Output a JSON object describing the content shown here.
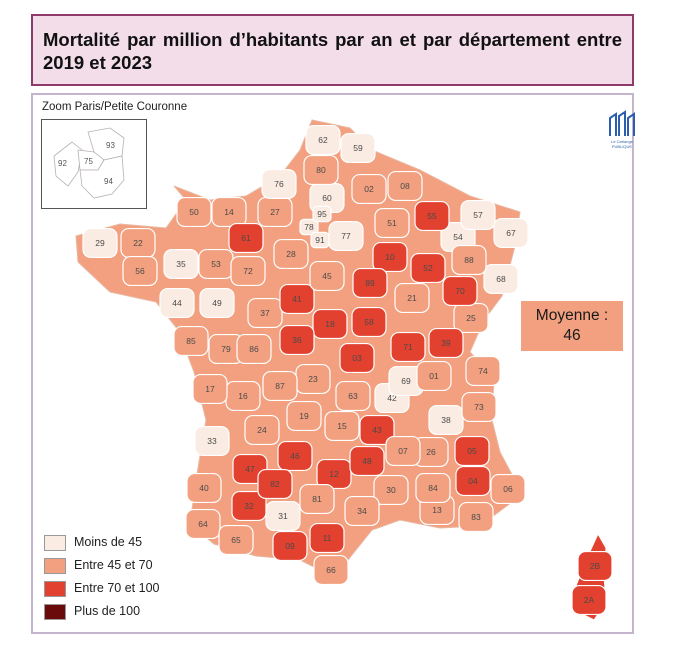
{
  "title": "Mortalité par million d’habitants par an et par département entre 2019 et 2023",
  "inset": {
    "title": "Zoom Paris/Petite Couronne",
    "labels": [
      "93",
      "92",
      "75",
      "94"
    ]
  },
  "average": {
    "line1": "Moyenne :",
    "line2": "46"
  },
  "legend": [
    {
      "label": "Moins de 45",
      "color": "#fbece3"
    },
    {
      "label": "Entre 45 et 70",
      "color": "#f2a07f"
    },
    {
      "label": "Entre 70 et 100",
      "color": "#e2412f"
    },
    {
      "label": "Plus de 100",
      "color": "#6b0a0a"
    }
  ],
  "colors": {
    "low": "#fbece3",
    "mid": "#f2a07f",
    "high": "#e2412f",
    "vhigh": "#6b0a0a",
    "border": "#ffffff",
    "title_border": "#8e3a6a",
    "title_bg": "#f3dde9"
  },
  "logo_text": [
    "Le Carlange",
    "PUBLIQUE"
  ],
  "departments": {
    "62": "low",
    "59": "low",
    "80": "mid",
    "76": "low",
    "02": "mid",
    "08": "mid",
    "60": "low",
    "50": "mid",
    "14": "mid",
    "27": "mid",
    "95": "low",
    "78": "low",
    "91": "low",
    "77": "low",
    "51": "mid",
    "55": "high",
    "57": "low",
    "54": "low",
    "67": "low",
    "29": "low",
    "22": "mid",
    "61": "high",
    "28": "mid",
    "10": "high",
    "52": "high",
    "88": "mid",
    "68": "low",
    "56": "mid",
    "35": "low",
    "53": "mid",
    "72": "mid",
    "45": "mid",
    "89": "high",
    "70": "high",
    "21": "mid",
    "44": "low",
    "49": "low",
    "37": "mid",
    "41": "high",
    "25": "mid",
    "85": "mid",
    "79": "mid",
    "86": "mid",
    "36": "high",
    "18": "high",
    "58": "high",
    "71": "high",
    "39": "high",
    "03": "high",
    "01": "mid",
    "74": "mid",
    "17": "mid",
    "87": "mid",
    "23": "mid",
    "69": "low",
    "73": "mid",
    "16": "mid",
    "19": "mid",
    "63": "mid",
    "42": "low",
    "38": "low",
    "33": "low",
    "24": "mid",
    "15": "mid",
    "43": "high",
    "07": "mid",
    "26": "mid",
    "05": "high",
    "47": "high",
    "46": "high",
    "12": "high",
    "48": "high",
    "04": "high",
    "06": "mid",
    "40": "mid",
    "82": "high",
    "81": "mid",
    "30": "mid",
    "84": "mid",
    "13": "mid",
    "83": "mid",
    "32": "high",
    "31": "low",
    "34": "mid",
    "64": "mid",
    "65": "mid",
    "09": "high",
    "11": "high",
    "66": "mid",
    "2B": "high",
    "2A": "high"
  }
}
